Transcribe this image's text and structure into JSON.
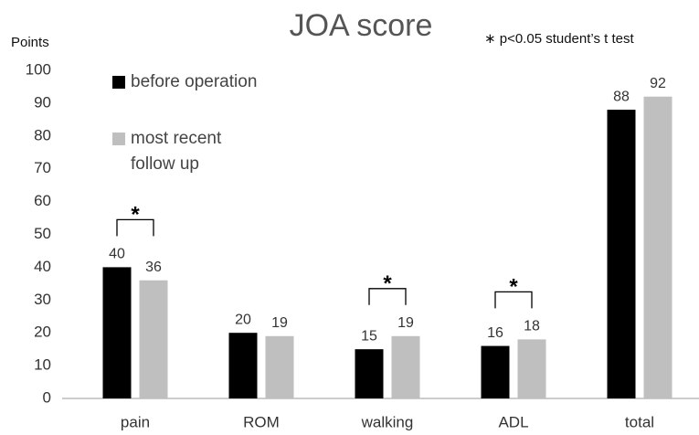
{
  "chart_data": {
    "type": "bar",
    "title": "JOA score",
    "y_label": "Points",
    "annotation": "∗ p<0.05  student’s t test",
    "categories": [
      "pain",
      "ROM",
      "walking",
      "ADL",
      "total"
    ],
    "series": [
      {
        "name": "before operation",
        "color": "#000000",
        "values": [
          40,
          20,
          15,
          16,
          88
        ]
      },
      {
        "name": "most recent follow up",
        "color": "#bfbfbf",
        "values": [
          36,
          19,
          19,
          18,
          92
        ]
      }
    ],
    "significance_label": "*",
    "significant": [
      true,
      false,
      true,
      true,
      false
    ],
    "ylim": [
      0,
      100
    ],
    "yticks": [
      0,
      10,
      20,
      30,
      40,
      50,
      60,
      70,
      80,
      90,
      100
    ],
    "grid": false
  }
}
